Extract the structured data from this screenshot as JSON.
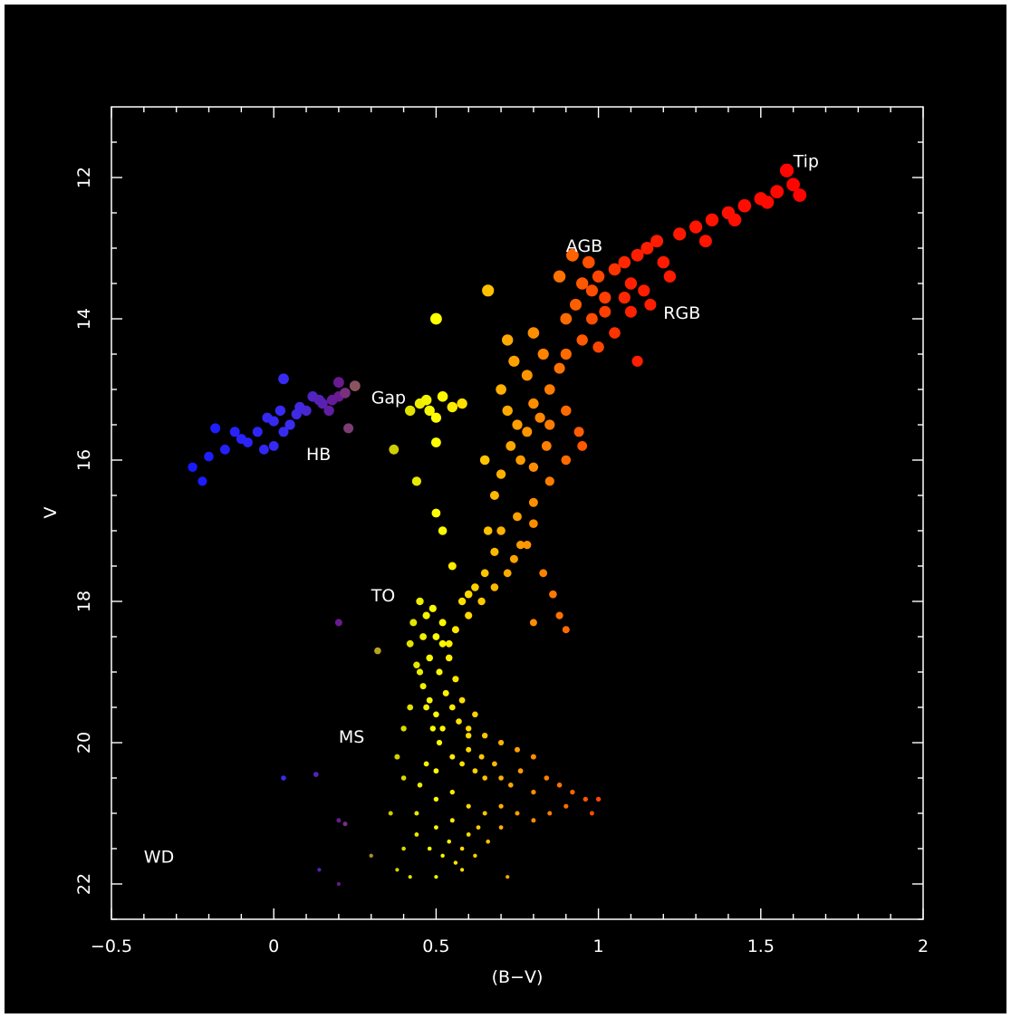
{
  "chart_data": {
    "type": "scatter",
    "title": "",
    "xlabel": "(B−V)",
    "ylabel": "V",
    "xlim": [
      -0.5,
      2.0
    ],
    "ylim": [
      22.5,
      11.0
    ],
    "y_inverted": true,
    "grid": false,
    "background": "#000000",
    "foreground": "#ffffff",
    "x_ticks": [
      {
        "value": -0.5,
        "label": "−0.5"
      },
      {
        "value": 0,
        "label": "0"
      },
      {
        "value": 0.5,
        "label": "0.5"
      },
      {
        "value": 1,
        "label": "1"
      },
      {
        "value": 1.5,
        "label": "1.5"
      },
      {
        "value": 2,
        "label": "2"
      }
    ],
    "y_ticks": [
      {
        "value": 12,
        "label": "12"
      },
      {
        "value": 14,
        "label": "14"
      },
      {
        "value": 16,
        "label": "16"
      },
      {
        "value": 18,
        "label": "18"
      },
      {
        "value": 20,
        "label": "20"
      },
      {
        "value": 22,
        "label": "22"
      }
    ],
    "color_scale": {
      "note": "point color follows B-V",
      "stops": [
        {
          "bv": -0.25,
          "color": "#1a1aff"
        },
        {
          "bv": 0.05,
          "color": "#3a2cf0"
        },
        {
          "bv": 0.2,
          "color": "#6a1a90"
        },
        {
          "bv": 0.35,
          "color": "#c8c800"
        },
        {
          "bv": 0.5,
          "color": "#ffff00"
        },
        {
          "bv": 0.7,
          "color": "#ffb000"
        },
        {
          "bv": 0.9,
          "color": "#ff6a00"
        },
        {
          "bv": 1.1,
          "color": "#ff2000"
        },
        {
          "bv": 1.7,
          "color": "#ff0000"
        }
      ]
    },
    "annotations": [
      {
        "text": "Tip",
        "x": 1.6,
        "y": 11.85
      },
      {
        "text": "AGB",
        "x": 0.9,
        "y": 13.05
      },
      {
        "text": "RGB",
        "x": 1.2,
        "y": 14.0
      },
      {
        "text": "Gap",
        "x": 0.3,
        "y": 15.2
      },
      {
        "text": "HB",
        "x": 0.1,
        "y": 16.0
      },
      {
        "text": "TO",
        "x": 0.3,
        "y": 18.0
      },
      {
        "text": "MS",
        "x": 0.2,
        "y": 20.0
      },
      {
        "text": "WD",
        "x": -0.4,
        "y": 21.7
      }
    ],
    "series": [
      {
        "points": [
          [
            0.02,
            15.3
          ],
          [
            0.03,
            15.6
          ],
          [
            0.12,
            15.1
          ],
          [
            -0.02,
            15.4
          ],
          [
            0.07,
            15.35
          ],
          [
            -0.05,
            15.6
          ],
          [
            0.15,
            15.2
          ],
          [
            0.18,
            15.15
          ],
          [
            -0.1,
            15.7
          ],
          [
            0.1,
            15.3
          ],
          [
            0.05,
            15.5
          ],
          [
            0.2,
            15.1
          ],
          [
            0.22,
            15.05
          ],
          [
            0.25,
            14.95
          ],
          [
            -0.15,
            15.85
          ],
          [
            -0.2,
            15.95
          ],
          [
            -0.25,
            16.1
          ],
          [
            -0.22,
            16.3
          ],
          [
            0.0,
            15.45
          ],
          [
            0.08,
            15.25
          ],
          [
            0.14,
            15.15
          ],
          [
            0.03,
            14.85
          ],
          [
            0.2,
            14.9
          ],
          [
            0.23,
            15.55
          ],
          [
            -0.03,
            15.85
          ],
          [
            -0.08,
            15.75
          ],
          [
            0.0,
            15.8
          ],
          [
            -0.12,
            15.6
          ],
          [
            -0.18,
            15.55
          ],
          [
            0.17,
            15.3
          ],
          [
            0.5,
            14.0
          ],
          [
            0.66,
            13.6
          ],
          [
            0.45,
            15.2
          ],
          [
            0.48,
            15.3
          ],
          [
            0.52,
            15.1
          ],
          [
            0.55,
            15.25
          ],
          [
            0.5,
            15.4
          ],
          [
            0.47,
            15.15
          ],
          [
            0.42,
            15.3
          ],
          [
            0.58,
            15.2
          ],
          [
            0.37,
            15.85
          ],
          [
            0.5,
            15.75
          ],
          [
            0.44,
            16.3
          ],
          [
            0.5,
            16.75
          ],
          [
            0.52,
            17.0
          ],
          [
            0.55,
            17.5
          ],
          [
            0.7,
            15.0
          ],
          [
            0.72,
            15.3
          ],
          [
            0.75,
            15.5
          ],
          [
            0.78,
            15.6
          ],
          [
            0.8,
            15.2
          ],
          [
            0.73,
            15.8
          ],
          [
            0.76,
            16.0
          ],
          [
            0.7,
            16.2
          ],
          [
            0.68,
            16.5
          ],
          [
            0.65,
            16.0
          ],
          [
            0.8,
            16.1
          ],
          [
            0.82,
            15.4
          ],
          [
            0.85,
            15.0
          ],
          [
            0.78,
            14.8
          ],
          [
            0.74,
            14.6
          ],
          [
            0.72,
            14.3
          ],
          [
            0.8,
            14.2
          ],
          [
            0.83,
            14.5
          ],
          [
            0.88,
            14.7
          ],
          [
            0.9,
            14.5
          ],
          [
            0.85,
            15.5
          ],
          [
            0.9,
            15.3
          ],
          [
            0.94,
            15.6
          ],
          [
            0.84,
            15.8
          ],
          [
            0.8,
            16.6
          ],
          [
            0.75,
            16.8
          ],
          [
            0.7,
            17.0
          ],
          [
            0.68,
            17.3
          ],
          [
            0.65,
            17.6
          ],
          [
            0.62,
            17.8
          ],
          [
            0.6,
            17.9
          ],
          [
            0.58,
            18.0
          ],
          [
            0.9,
            14.0
          ],
          [
            0.93,
            13.8
          ],
          [
            0.95,
            13.5
          ],
          [
            0.98,
            13.6
          ],
          [
            1.0,
            13.4
          ],
          [
            1.02,
            13.7
          ],
          [
            1.05,
            13.3
          ],
          [
            1.08,
            13.2
          ],
          [
            1.1,
            13.5
          ],
          [
            1.12,
            13.1
          ],
          [
            1.15,
            13.0
          ],
          [
            1.18,
            12.9
          ],
          [
            1.2,
            13.2
          ],
          [
            1.25,
            12.8
          ],
          [
            1.3,
            12.7
          ],
          [
            1.35,
            12.6
          ],
          [
            1.4,
            12.5
          ],
          [
            1.45,
            12.4
          ],
          [
            1.5,
            12.3
          ],
          [
            1.55,
            12.2
          ],
          [
            1.6,
            12.1
          ],
          [
            1.62,
            12.25
          ],
          [
            1.58,
            11.9
          ],
          [
            1.52,
            12.35
          ],
          [
            1.42,
            12.6
          ],
          [
            1.33,
            12.9
          ],
          [
            1.22,
            13.4
          ],
          [
            1.1,
            13.9
          ],
          [
            1.05,
            14.2
          ],
          [
            1.12,
            14.6
          ],
          [
            1.0,
            14.4
          ],
          [
            0.98,
            14.0
          ],
          [
            0.95,
            14.3
          ],
          [
            1.02,
            13.9
          ],
          [
            1.08,
            13.7
          ],
          [
            1.14,
            13.6
          ],
          [
            1.16,
            13.8
          ],
          [
            0.92,
            13.1
          ],
          [
            0.97,
            13.2
          ],
          [
            0.88,
            13.4
          ],
          [
            0.9,
            16.0
          ],
          [
            0.95,
            15.8
          ],
          [
            0.85,
            16.3
          ],
          [
            0.8,
            16.9
          ],
          [
            0.78,
            17.2
          ],
          [
            0.83,
            17.6
          ],
          [
            0.86,
            17.9
          ],
          [
            0.88,
            18.2
          ],
          [
            0.9,
            18.4
          ],
          [
            0.8,
            18.3
          ],
          [
            0.45,
            18.0
          ],
          [
            0.43,
            18.3
          ],
          [
            0.42,
            18.6
          ],
          [
            0.44,
            18.9
          ],
          [
            0.46,
            19.2
          ],
          [
            0.48,
            19.4
          ],
          [
            0.5,
            19.6
          ],
          [
            0.52,
            19.8
          ],
          [
            0.47,
            18.2
          ],
          [
            0.5,
            18.5
          ],
          [
            0.48,
            18.8
          ],
          [
            0.51,
            19.0
          ],
          [
            0.53,
            19.3
          ],
          [
            0.55,
            19.5
          ],
          [
            0.57,
            19.7
          ],
          [
            0.6,
            19.9
          ],
          [
            0.46,
            18.5
          ],
          [
            0.49,
            18.1
          ],
          [
            0.52,
            18.3
          ],
          [
            0.54,
            18.6
          ],
          [
            0.45,
            19.0
          ],
          [
            0.47,
            19.5
          ],
          [
            0.49,
            19.8
          ],
          [
            0.51,
            20.0
          ],
          [
            0.55,
            20.2
          ],
          [
            0.58,
            20.3
          ],
          [
            0.62,
            20.4
          ],
          [
            0.65,
            20.5
          ],
          [
            0.6,
            20.1
          ],
          [
            0.64,
            20.2
          ],
          [
            0.68,
            20.3
          ],
          [
            0.7,
            20.5
          ],
          [
            0.73,
            20.6
          ],
          [
            0.76,
            20.4
          ],
          [
            0.8,
            20.7
          ],
          [
            0.84,
            20.5
          ],
          [
            0.88,
            20.6
          ],
          [
            0.92,
            20.7
          ],
          [
            0.96,
            20.8
          ],
          [
            1.0,
            20.8
          ],
          [
            0.5,
            20.4
          ],
          [
            0.47,
            20.3
          ],
          [
            0.45,
            20.6
          ],
          [
            0.5,
            20.8
          ],
          [
            0.55,
            20.7
          ],
          [
            0.6,
            20.9
          ],
          [
            0.65,
            21.0
          ],
          [
            0.7,
            21.2
          ],
          [
            0.55,
            21.1
          ],
          [
            0.6,
            21.3
          ],
          [
            0.62,
            21.6
          ],
          [
            0.58,
            21.8
          ],
          [
            0.52,
            21.6
          ],
          [
            0.48,
            21.5
          ],
          [
            0.44,
            21.3
          ],
          [
            0.4,
            21.5
          ],
          [
            0.38,
            21.8
          ],
          [
            0.42,
            21.9
          ],
          [
            0.5,
            21.9
          ],
          [
            0.56,
            21.7
          ],
          [
            0.72,
            21.9
          ],
          [
            0.66,
            21.4
          ],
          [
            0.63,
            21.2
          ],
          [
            0.7,
            20.9
          ],
          [
            0.75,
            21.0
          ],
          [
            0.8,
            21.1
          ],
          [
            0.85,
            21.0
          ],
          [
            0.9,
            20.9
          ],
          [
            0.98,
            21.0
          ],
          [
            0.6,
            19.8
          ],
          [
            0.65,
            19.9
          ],
          [
            0.7,
            20.0
          ],
          [
            0.75,
            20.1
          ],
          [
            0.8,
            20.2
          ],
          [
            0.62,
            19.6
          ],
          [
            0.58,
            19.4
          ],
          [
            0.56,
            19.1
          ],
          [
            0.54,
            18.8
          ],
          [
            0.52,
            18.6
          ],
          [
            0.56,
            18.4
          ],
          [
            0.6,
            18.2
          ],
          [
            0.64,
            18.0
          ],
          [
            0.68,
            17.8
          ],
          [
            0.72,
            17.6
          ],
          [
            0.74,
            17.4
          ],
          [
            0.76,
            17.2
          ],
          [
            0.66,
            17.0
          ],
          [
            0.42,
            19.5
          ],
          [
            0.4,
            19.8
          ],
          [
            0.38,
            20.2
          ],
          [
            0.4,
            20.5
          ],
          [
            0.36,
            21.0
          ],
          [
            0.44,
            21.0
          ],
          [
            0.5,
            21.2
          ],
          [
            0.54,
            21.4
          ],
          [
            0.58,
            21.5
          ],
          [
            0.03,
            20.5
          ],
          [
            0.13,
            20.45
          ],
          [
            0.2,
            21.1
          ],
          [
            0.22,
            21.15
          ],
          [
            0.3,
            21.6
          ],
          [
            0.14,
            21.8
          ],
          [
            0.2,
            22.0
          ],
          [
            0.2,
            18.3
          ],
          [
            0.32,
            18.7
          ]
        ]
      }
    ]
  }
}
